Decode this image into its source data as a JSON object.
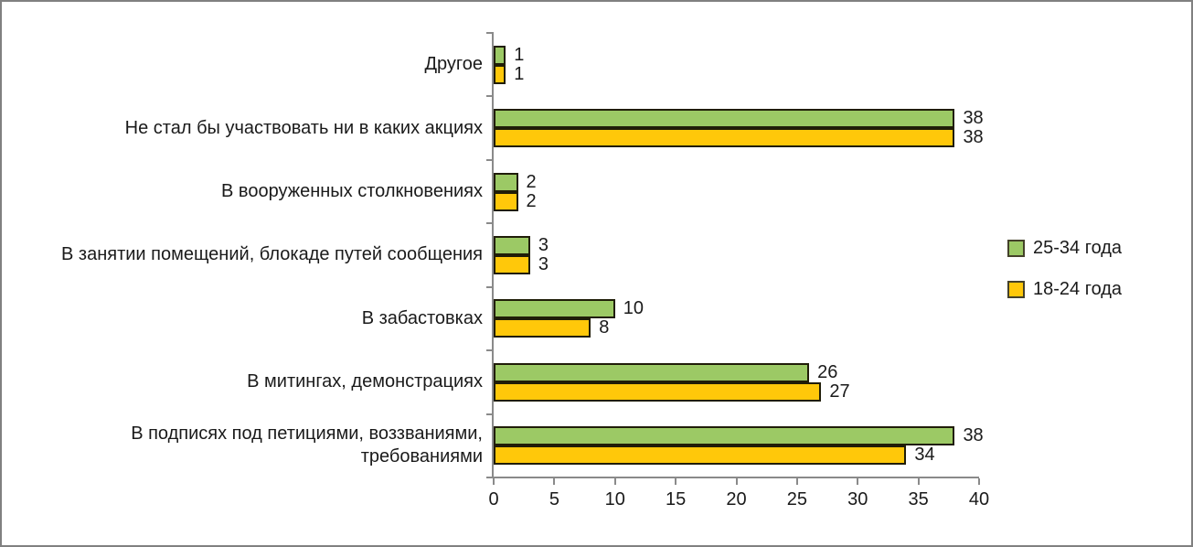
{
  "chart_data": {
    "type": "bar",
    "orientation": "horizontal",
    "title": "",
    "xlabel": "",
    "ylabel": "",
    "categories": [
      "Другое",
      "Не стал бы участвовать ни в каких акциях",
      "В вооруженных столкновениях",
      "В занятии помещений, блокаде путей сообщения",
      "В забастовках",
      "В митингах, демонстрациях",
      "В подписях под петициями, воззваниями, требованиями"
    ],
    "series": [
      {
        "name": "25-34 года",
        "color": "#9CC965",
        "values": [
          1,
          38,
          2,
          3,
          10,
          26,
          38
        ]
      },
      {
        "name": "18-24 года",
        "color": "#FFC80A",
        "values": [
          1,
          38,
          2,
          3,
          8,
          27,
          34
        ]
      }
    ],
    "xlim": [
      0,
      40
    ],
    "x_ticks": [
      0,
      5,
      10,
      15,
      20,
      25,
      30,
      35,
      40
    ],
    "value_labels": true,
    "grid": false,
    "legend_position": "right"
  }
}
